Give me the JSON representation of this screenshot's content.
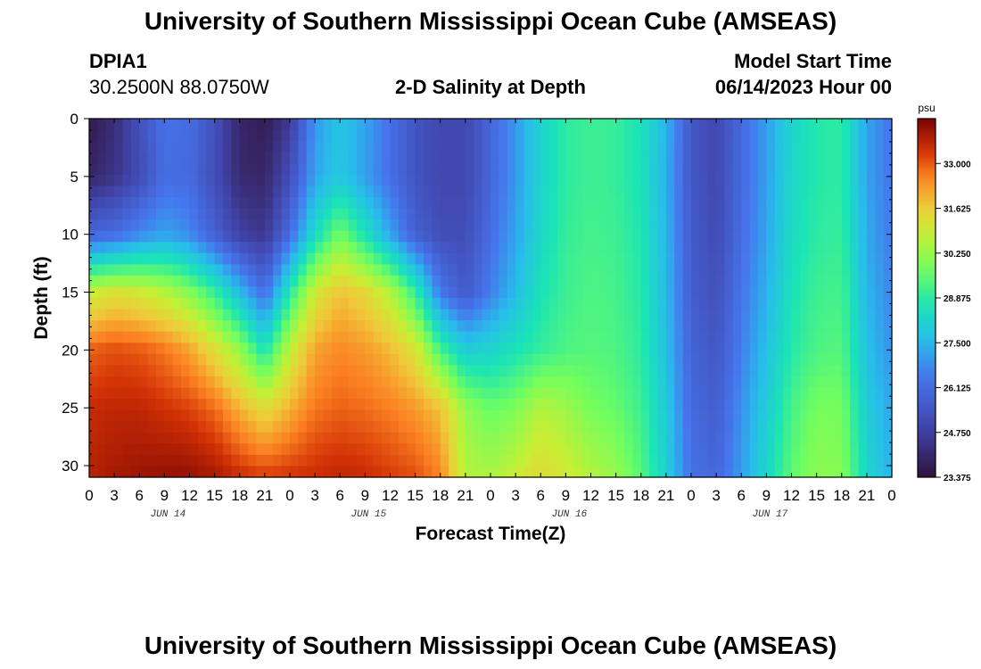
{
  "header": {
    "title": "University of Southern Mississippi Ocean Cube (AMSEAS)",
    "station_id": "DPIA1",
    "coords": "30.2500N  88.0750W",
    "plot_title": "2-D Salinity at Depth",
    "model_start_label": "Model Start Time",
    "model_start_value": "06/14/2023 Hour 00"
  },
  "footer": {
    "title": "University of Southern Mississippi Ocean Cube (AMSEAS)"
  },
  "chart_data": {
    "type": "heatmap",
    "title": "2-D Salinity at Depth",
    "xlabel": "Forecast Time(Z)",
    "ylabel": "Depth (ft)",
    "x_tick_labels": [
      "0",
      "3",
      "6",
      "9",
      "12",
      "15",
      "18",
      "21",
      "0",
      "3",
      "6",
      "9",
      "12",
      "15",
      "18",
      "21",
      "0",
      "3",
      "6",
      "9",
      "12",
      "15",
      "18",
      "21",
      "0",
      "3",
      "6",
      "9",
      "12",
      "15",
      "18",
      "21",
      "0"
    ],
    "date_labels": [
      {
        "text": "JUN 14",
        "hour": 9
      },
      {
        "text": "JUN 15",
        "hour": 33
      },
      {
        "text": "JUN 16",
        "hour": 57
      },
      {
        "text": "JUN 17",
        "hour": 81
      }
    ],
    "xlim_hours": [
      0,
      96
    ],
    "ylim_ft": [
      0,
      31
    ],
    "y_ticks": [
      0,
      5,
      10,
      15,
      20,
      25,
      30
    ],
    "colorbar": {
      "unit": "psu",
      "min": 23.375,
      "max": 34.375,
      "ticks": [
        "33.000",
        "31.625",
        "30.250",
        "28.875",
        "27.500",
        "26.125",
        "24.750",
        "23.375"
      ]
    },
    "depths_ft": [
      0,
      5,
      10,
      15,
      20,
      25,
      31
    ],
    "times_hours": [
      0,
      3,
      6,
      9,
      12,
      15,
      18,
      21,
      24,
      27,
      30,
      33,
      36,
      39,
      42,
      45,
      48,
      51,
      54,
      57,
      60,
      63,
      66,
      69,
      72,
      75,
      78,
      81,
      84,
      87,
      90,
      93,
      96
    ],
    "salinity": [
      [
        23.6,
        24.2,
        25.3,
        26.3,
        26.2,
        25.3,
        24.0,
        23.7,
        24.6,
        27.0,
        27.8,
        27.2,
        26.3,
        25.4,
        25.0,
        25.0,
        26.0,
        27.0,
        28.2,
        28.9,
        29.1,
        29.0,
        28.6,
        27.5,
        25.5,
        25.0,
        26.1,
        27.1,
        28.2,
        28.8,
        28.9,
        27.2,
        26.4
      ],
      [
        24.0,
        24.4,
        25.1,
        26.2,
        26.1,
        25.2,
        24.1,
        24.0,
        25.2,
        27.2,
        27.9,
        27.1,
        26.3,
        25.4,
        25.0,
        25.0,
        26.0,
        27.0,
        28.2,
        28.9,
        29.1,
        29.0,
        28.6,
        27.4,
        25.5,
        25.0,
        26.1,
        27.1,
        28.3,
        28.8,
        28.9,
        27.2,
        26.4
      ],
      [
        26.0,
        26.2,
        26.8,
        27.2,
        26.8,
        25.8,
        24.8,
        24.5,
        26.2,
        28.4,
        29.8,
        28.6,
        27.2,
        25.8,
        25.2,
        25.2,
        26.2,
        27.2,
        28.3,
        29.0,
        29.2,
        29.1,
        28.7,
        27.5,
        25.6,
        25.1,
        26.2,
        27.2,
        28.4,
        28.9,
        29.0,
        27.3,
        26.5
      ],
      [
        30.8,
        31.2,
        31.0,
        30.6,
        30.0,
        29.0,
        27.6,
        26.2,
        28.8,
        31.0,
        31.8,
        31.4,
        30.6,
        29.0,
        26.5,
        25.6,
        26.6,
        27.6,
        28.6,
        29.1,
        29.3,
        29.2,
        28.8,
        27.6,
        25.7,
        25.3,
        26.4,
        27.4,
        28.6,
        29.1,
        29.2,
        27.5,
        26.7
      ],
      [
        32.9,
        33.1,
        33.0,
        32.7,
        32.2,
        31.3,
        30.2,
        28.6,
        30.8,
        32.2,
        32.5,
        32.3,
        31.9,
        31.2,
        29.2,
        28.0,
        28.2,
        28.6,
        29.0,
        29.3,
        29.4,
        29.3,
        28.9,
        27.7,
        25.9,
        25.5,
        26.6,
        27.7,
        28.8,
        29.3,
        29.4,
        27.7,
        26.9
      ],
      [
        33.5,
        33.6,
        33.6,
        33.4,
        33.2,
        32.8,
        32.0,
        31.3,
        32.0,
        32.7,
        32.9,
        32.8,
        32.6,
        32.3,
        31.8,
        30.2,
        29.6,
        29.9,
        30.6,
        30.3,
        29.8,
        29.6,
        29.1,
        27.9,
        26.1,
        25.7,
        26.9,
        28.0,
        29.2,
        29.8,
        29.8,
        28.0,
        27.2
      ],
      [
        33.7,
        33.9,
        34.0,
        34.1,
        34.1,
        33.9,
        33.5,
        33.3,
        33.4,
        33.5,
        33.6,
        33.5,
        33.3,
        33.1,
        32.6,
        30.6,
        30.5,
        30.9,
        31.4,
        31.0,
        30.6,
        30.2,
        29.4,
        28.1,
        26.3,
        26.0,
        27.1,
        28.3,
        29.5,
        30.1,
        30.0,
        28.3,
        27.4
      ]
    ]
  }
}
